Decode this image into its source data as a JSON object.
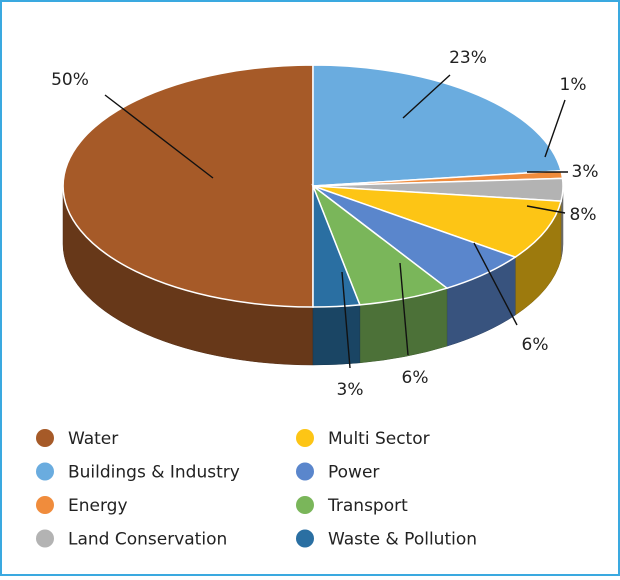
{
  "chart_data": {
    "type": "pie",
    "categories": [
      "Water",
      "Buildings & Industry",
      "Energy",
      "Land Conservation",
      "Multi Sector",
      "Power",
      "Transport",
      "Waste & Pollution"
    ],
    "values": [
      50,
      23,
      1,
      3,
      8,
      6,
      6,
      3
    ],
    "value_labels": [
      "50%",
      "23%",
      "1%",
      "3%",
      "8%",
      "6%",
      "6%",
      "3%"
    ],
    "colors": [
      "#a65a28",
      "#6aacdf",
      "#f08c3c",
      "#b3b3b3",
      "#fdc515",
      "#5a86cc",
      "#7ab65a",
      "#2a6fa2"
    ],
    "legend": "bottom"
  }
}
